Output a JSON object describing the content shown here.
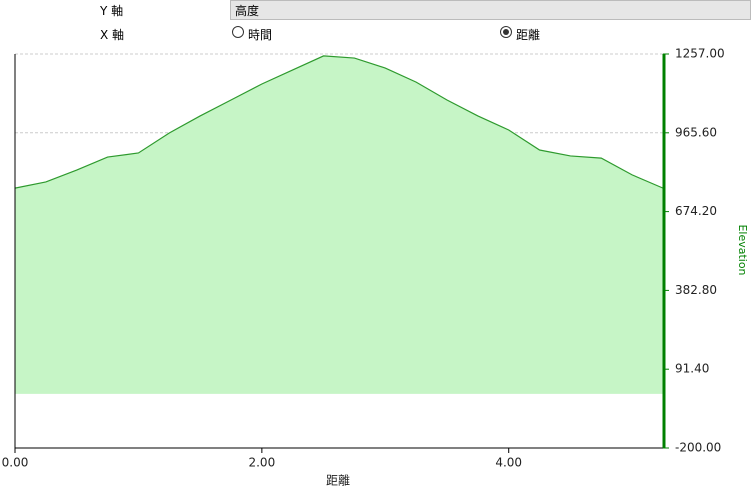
{
  "controls": {
    "y_axis_label": "Y 軸",
    "y_axis_value": "高度",
    "x_axis_label": "X 軸",
    "x_options": [
      {
        "label": "時間",
        "checked": false
      },
      {
        "label": "距離",
        "checked": true
      }
    ]
  },
  "chart_data": {
    "type": "area",
    "xlabel": "距離",
    "ylabel": "Elevation",
    "x": [
      0,
      0.25,
      0.5,
      0.75,
      1.0,
      1.25,
      1.5,
      1.75,
      2.0,
      2.25,
      2.5,
      2.75,
      3.0,
      3.25,
      3.5,
      3.75,
      4.0,
      4.25,
      4.5,
      4.75,
      5.0,
      5.25
    ],
    "values": [
      761,
      784,
      828,
      876,
      891,
      965,
      1028,
      1087,
      1146,
      1198,
      1250,
      1242,
      1205,
      1153,
      1087,
      1028,
      976,
      902,
      880,
      872,
      810,
      761
    ],
    "color": "#2e9a2e",
    "fill": "#c6f5c6",
    "axis_color": "#008000",
    "xlim": [
      0,
      5.25
    ],
    "ylim": [
      -200,
      1257
    ],
    "xticks": [
      {
        "value": 0,
        "label": "0.00"
      },
      {
        "value": 2,
        "label": "2.00"
      },
      {
        "value": 4,
        "label": "4.00"
      }
    ],
    "yticks": [
      {
        "value": -200,
        "label": "-200.00"
      },
      {
        "value": 91.4,
        "label": "91.40"
      },
      {
        "value": 382.8,
        "label": "382.80"
      },
      {
        "value": 674.2,
        "label": "674.20"
      },
      {
        "value": 965.6,
        "label": "965.60"
      },
      {
        "value": 1257,
        "label": "1257.00"
      }
    ],
    "grid": true
  }
}
